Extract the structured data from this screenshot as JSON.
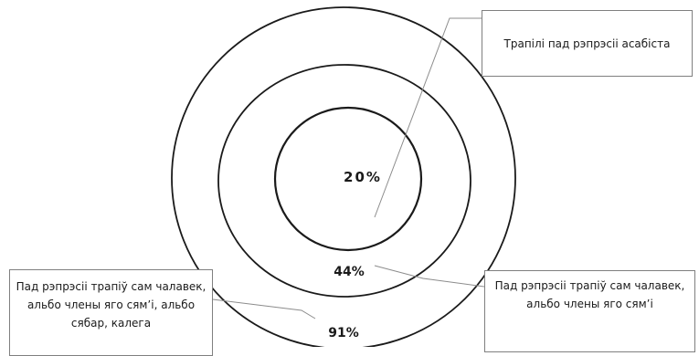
{
  "labels": {
    "inner_percent": "20%",
    "middle_percent": "44%",
    "outer_percent": "91%",
    "callout_top": "Трапілі пад рэпрэсіі асабіста",
    "callout_bottom_right": "Пад рэпрэсіі трапіў сам чалавек, альбо члены яго сям’і",
    "callout_bottom_left": "Пад рэпрэсіі трапіў сам чалавек, альбо члены яго сям’і, альбо сябар, калега"
  },
  "colors": {
    "ring_stroke": "#1a1a1a",
    "leader_line": "#8c8c8c",
    "callout_border": "#7f7f7f"
  }
}
